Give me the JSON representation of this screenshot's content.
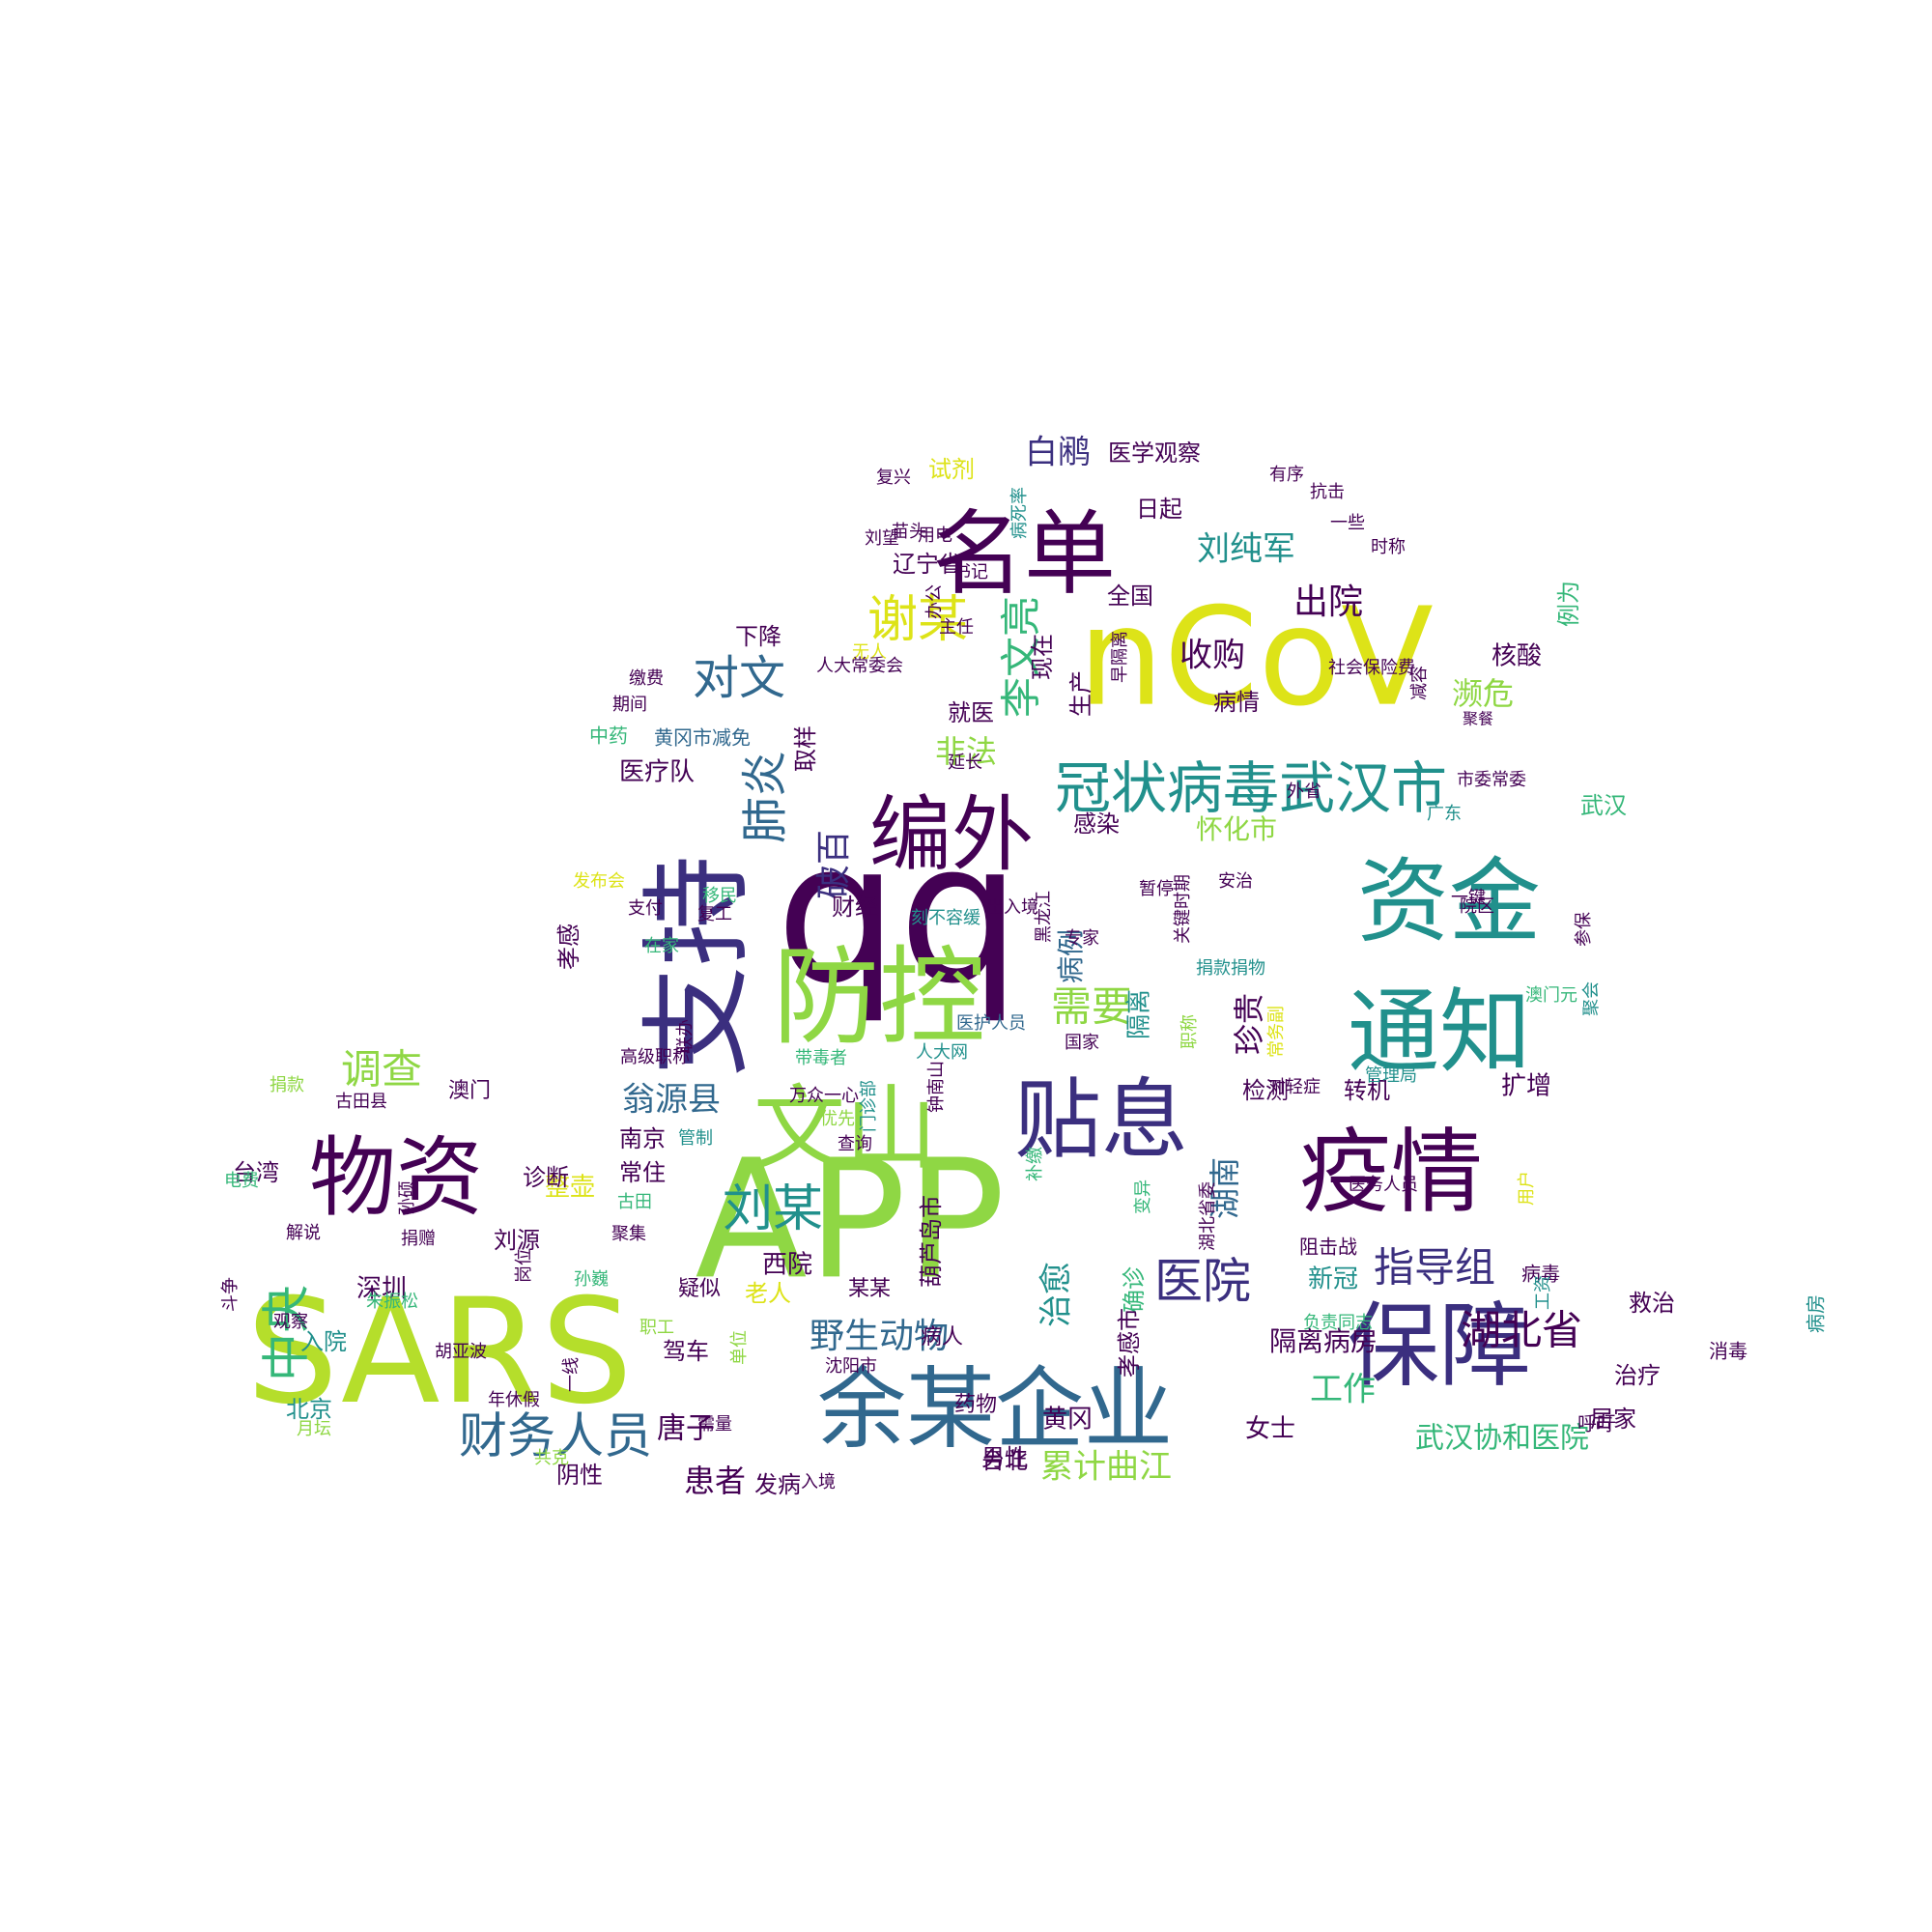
{
  "palette": {
    "dark_purple": "#440154",
    "indigo": "#3b2f7f",
    "blue": "#31688e",
    "teal": "#21908c",
    "green": "#35b779",
    "lime": "#8fd744",
    "yellow": "#dde318",
    "background": "#ffffff"
  },
  "words": [
    {
      "text": "qq",
      "weight": 100,
      "color": "#440154"
    },
    {
      "text": "APP",
      "weight": 97,
      "color": "#8fd744"
    },
    {
      "text": "SARS",
      "weight": 95,
      "color": "#b5de2b"
    },
    {
      "text": "nCoV",
      "weight": 92,
      "color": "#dde318"
    },
    {
      "text": "支持",
      "weight": 88,
      "color": "#3b2f7f"
    },
    {
      "text": "防控",
      "weight": 87,
      "color": "#8fd744"
    },
    {
      "text": "资金",
      "weight": 85,
      "color": "#21908c"
    },
    {
      "text": "通知",
      "weight": 84,
      "color": "#21908c"
    },
    {
      "text": "名单",
      "weight": 82,
      "color": "#440154"
    },
    {
      "text": "疫情",
      "weight": 82,
      "color": "#440154"
    },
    {
      "text": "保障",
      "weight": 80,
      "color": "#3b2f7f"
    },
    {
      "text": "余某企业",
      "weight": 79,
      "color": "#31688e"
    },
    {
      "text": "文山",
      "weight": 78,
      "color": "#8fd744"
    },
    {
      "text": "贴息",
      "weight": 77,
      "color": "#3b2f7f"
    },
    {
      "text": "物资",
      "weight": 76,
      "color": "#440154"
    },
    {
      "text": "编外",
      "weight": 74,
      "color": "#440154"
    },
    {
      "text": "冠状病毒武汉市",
      "weight": 58,
      "color": "#21908c"
    },
    {
      "text": "谢某",
      "weight": 55,
      "color": "#dde318"
    },
    {
      "text": "刘某",
      "weight": 54,
      "color": "#21908c"
    },
    {
      "text": "财务人员",
      "weight": 52,
      "color": "#31688e"
    },
    {
      "text": "中央",
      "weight": 52,
      "color": "#35b779"
    },
    {
      "text": "湖北省",
      "weight": 50,
      "color": "#440154"
    },
    {
      "text": "医院",
      "weight": 50,
      "color": "#3b2f7f"
    },
    {
      "text": "对文",
      "weight": 48,
      "color": "#31688e"
    },
    {
      "text": "肺炎",
      "weight": 47,
      "color": "#31688e"
    },
    {
      "text": "李文亮",
      "weight": 46,
      "color": "#35b779"
    },
    {
      "text": "调查",
      "weight": 44,
      "color": "#8fd744"
    },
    {
      "text": "需要",
      "weight": 44,
      "color": "#8fd744"
    },
    {
      "text": "指导组",
      "weight": 44,
      "color": "#3b2f7f"
    },
    {
      "text": "野生动物",
      "weight": 42,
      "color": "#31688e"
    },
    {
      "text": "破百",
      "weight": 42,
      "color": "#3b2f7f"
    },
    {
      "text": "出院",
      "weight": 40,
      "color": "#440154"
    },
    {
      "text": "刘纯军",
      "weight": 39,
      "color": "#21908c"
    },
    {
      "text": "白鹇",
      "weight": 39,
      "color": "#3b2f7f"
    },
    {
      "text": "收购",
      "weight": 39,
      "color": "#440154"
    },
    {
      "text": "翁源县",
      "weight": 38,
      "color": "#31688e"
    },
    {
      "text": "治愈",
      "weight": 38,
      "color": "#21908c"
    },
    {
      "text": "湖南",
      "weight": 38,
      "color": "#31688e"
    },
    {
      "text": "工作",
      "weight": 38,
      "color": "#35b779"
    },
    {
      "text": "累计曲江",
      "weight": 37,
      "color": "#8fd744"
    },
    {
      "text": "珍贵",
      "weight": 37,
      "color": "#440154"
    },
    {
      "text": "濒危",
      "weight": 36,
      "color": "#8fd744"
    },
    {
      "text": "非法",
      "weight": 36,
      "color": "#8fd744"
    },
    {
      "text": "患者",
      "weight": 35,
      "color": "#440154"
    },
    {
      "text": "武汉协和医院",
      "weight": 34,
      "color": "#35b779"
    },
    {
      "text": "怀化市",
      "weight": 32,
      "color": "#8fd744"
    },
    {
      "text": "隔离病房",
      "weight": 32,
      "color": "#440154"
    },
    {
      "text": "唐子",
      "weight": 32,
      "color": "#440154"
    },
    {
      "text": "病例",
      "weight": 32,
      "color": "#31688e"
    },
    {
      "text": "医疗队",
      "weight": 31,
      "color": "#440154"
    },
    {
      "text": "整壶",
      "weight": 31,
      "color": "#dde318"
    },
    {
      "text": "西院",
      "weight": 30,
      "color": "#440154"
    },
    {
      "text": "深圳",
      "weight": 30,
      "color": "#440154"
    },
    {
      "text": "女士",
      "weight": 30,
      "color": "#440154"
    },
    {
      "text": "黄冈",
      "weight": 30,
      "color": "#440154"
    },
    {
      "text": "隔离",
      "weight": 30,
      "color": "#21908c"
    },
    {
      "text": "新冠",
      "weight": 30,
      "color": "#21908c"
    },
    {
      "text": "扩增",
      "weight": 30,
      "color": "#440154"
    },
    {
      "text": "核酸",
      "weight": 30,
      "color": "#440154"
    },
    {
      "text": "常住",
      "weight": 29,
      "color": "#440154"
    },
    {
      "text": "南京",
      "weight": 29,
      "color": "#440154"
    },
    {
      "text": "就医",
      "weight": 29,
      "color": "#440154"
    },
    {
      "text": "感染",
      "weight": 29,
      "color": "#440154"
    },
    {
      "text": "检测",
      "weight": 29,
      "color": "#440154"
    },
    {
      "text": "转机",
      "weight": 29,
      "color": "#440154"
    },
    {
      "text": "治疗",
      "weight": 29,
      "color": "#440154"
    },
    {
      "text": "台北",
      "weight": 29,
      "color": "#440154"
    },
    {
      "text": "男性",
      "weight": 29,
      "color": "#440154"
    },
    {
      "text": "发病",
      "weight": 29,
      "color": "#440154"
    },
    {
      "text": "阴性",
      "weight": 29,
      "color": "#440154"
    },
    {
      "text": "刘源",
      "weight": 29,
      "color": "#440154"
    },
    {
      "text": "诊断",
      "weight": 29,
      "color": "#440154"
    },
    {
      "text": "北京",
      "weight": 28,
      "color": "#21908c"
    },
    {
      "text": "老人",
      "weight": 28,
      "color": "#dde318"
    },
    {
      "text": "驾车",
      "weight": 28,
      "color": "#440154"
    },
    {
      "text": "台湾",
      "weight": 28,
      "color": "#440154"
    },
    {
      "text": "入院",
      "weight": 28,
      "color": "#21908c"
    },
    {
      "text": "确诊",
      "weight": 28,
      "color": "#35b779"
    },
    {
      "text": "孝感市",
      "weight": 28,
      "color": "#440154"
    },
    {
      "text": "葫芦岛市",
      "weight": 28,
      "color": "#440154"
    },
    {
      "text": "取样",
      "weight": 26,
      "color": "#440154"
    },
    {
      "text": "例为",
      "weight": 26,
      "color": "#35b779"
    },
    {
      "text": "武汉",
      "weight": 26,
      "color": "#35b779"
    },
    {
      "text": "医学观察",
      "weight": 26,
      "color": "#440154"
    },
    {
      "text": "试剂",
      "weight": 26,
      "color": "#dde318"
    },
    {
      "text": "日起",
      "weight": 26,
      "color": "#440154"
    },
    {
      "text": "辽宁省",
      "weight": 26,
      "color": "#440154"
    },
    {
      "text": "下降",
      "weight": 24,
      "color": "#440154"
    },
    {
      "text": "财经",
      "weight": 24,
      "color": "#440154"
    },
    {
      "text": "孝感",
      "weight": 24,
      "color": "#440154"
    },
    {
      "text": "救治",
      "weight": 24,
      "color": "#440154"
    },
    {
      "text": "居家",
      "weight": 24,
      "color": "#440154"
    },
    {
      "text": "病情",
      "weight": 24,
      "color": "#440154"
    },
    {
      "text": "生产",
      "weight": 24,
      "color": "#440154"
    },
    {
      "text": "现在",
      "weight": 24,
      "color": "#440154"
    },
    {
      "text": "全国",
      "weight": 24,
      "color": "#440154"
    },
    {
      "text": "药物",
      "weight": 22,
      "color": "#440154"
    },
    {
      "text": "病人",
      "weight": 22,
      "color": "#440154"
    },
    {
      "text": "某某",
      "weight": 22,
      "color": "#440154"
    },
    {
      "text": "疑似",
      "weight": 22,
      "color": "#440154"
    },
    {
      "text": "澳门",
      "weight": 22,
      "color": "#440154"
    },
    {
      "text": "中药",
      "weight": 20,
      "color": "#35b779"
    },
    {
      "text": "黄冈市减免",
      "weight": 20,
      "color": "#31688e"
    },
    {
      "text": "阻击战",
      "weight": 20,
      "color": "#440154"
    },
    {
      "text": "病毒",
      "weight": 20,
      "color": "#440154"
    },
    {
      "text": "消毒",
      "weight": 20,
      "color": "#440154"
    },
    {
      "text": "呼吁",
      "weight": 20,
      "color": "#440154"
    },
    {
      "text": "病房",
      "weight": 20,
      "color": "#21908c"
    },
    {
      "text": "入境",
      "weight": 20,
      "color": "#440154"
    },
    {
      "text": "共克",
      "weight": 18,
      "color": "#8fd744"
    },
    {
      "text": "月坛",
      "weight": 18,
      "color": "#8fd744"
    },
    {
      "text": "胡亚波",
      "weight": 18,
      "color": "#440154"
    },
    {
      "text": "观察",
      "weight": 18,
      "color": "#440154"
    },
    {
      "text": "斗争",
      "weight": 18,
      "color": "#440154"
    },
    {
      "text": "电费",
      "weight": 18,
      "color": "#35b779"
    },
    {
      "text": "解说",
      "weight": 18,
      "color": "#440154"
    },
    {
      "text": "孙硕",
      "weight": 18,
      "color": "#440154"
    },
    {
      "text": "捐赠",
      "weight": 18,
      "color": "#440154"
    },
    {
      "text": "捐款",
      "weight": 18,
      "color": "#8fd744"
    },
    {
      "text": "古田县",
      "weight": 18,
      "color": "#440154"
    },
    {
      "text": "管制",
      "weight": 18,
      "color": "#21908c"
    },
    {
      "text": "古田",
      "weight": 18,
      "color": "#35b779"
    },
    {
      "text": "聚集",
      "weight": 18,
      "color": "#440154"
    },
    {
      "text": "孙巍",
      "weight": 18,
      "color": "#35b779"
    },
    {
      "text": "岗位",
      "weight": 18,
      "color": "#440154"
    },
    {
      "text": "朱振松",
      "weight": 18,
      "color": "#35b779"
    },
    {
      "text": "职工",
      "weight": 18,
      "color": "#8fd744"
    },
    {
      "text": "单位",
      "weight": 18,
      "color": "#8fd744"
    },
    {
      "text": "沈阳市",
      "weight": 18,
      "color": "#440154"
    },
    {
      "text": "需量",
      "weight": 18,
      "color": "#440154"
    },
    {
      "text": "年休假",
      "weight": 18,
      "color": "#440154"
    },
    {
      "text": "一线",
      "weight": 18,
      "color": "#440154"
    },
    {
      "text": "带毒者",
      "weight": 18,
      "color": "#35b779"
    },
    {
      "text": "高级职称",
      "weight": 18,
      "color": "#440154"
    },
    {
      "text": "联办",
      "weight": 18,
      "color": "#440154"
    },
    {
      "text": "万众一心",
      "weight": 18,
      "color": "#440154"
    },
    {
      "text": "优先",
      "weight": 18,
      "color": "#8fd744"
    },
    {
      "text": "查询",
      "weight": 18,
      "color": "#440154"
    },
    {
      "text": "门诊部",
      "weight": 18,
      "color": "#21908c"
    },
    {
      "text": "钟南山",
      "weight": 18,
      "color": "#440154"
    },
    {
      "text": "人大网",
      "weight": 18,
      "color": "#21908c"
    },
    {
      "text": "医护人员",
      "weight": 18,
      "color": "#31688e"
    },
    {
      "text": "国家",
      "weight": 18,
      "color": "#440154"
    },
    {
      "text": "补缴",
      "weight": 18,
      "color": "#35b779"
    },
    {
      "text": "变异",
      "weight": 18,
      "color": "#35b779"
    },
    {
      "text": "湖北省委",
      "weight": 18,
      "color": "#440154"
    },
    {
      "text": "职称",
      "weight": 18,
      "color": "#8fd744"
    },
    {
      "text": "常务副",
      "weight": 18,
      "color": "#dde318"
    },
    {
      "text": "对轻症",
      "weight": 18,
      "color": "#440154"
    },
    {
      "text": "管理局",
      "weight": 18,
      "color": "#21908c"
    },
    {
      "text": "用户",
      "weight": 18,
      "color": "#dde318"
    },
    {
      "text": "医务人员",
      "weight": 18,
      "color": "#440154"
    },
    {
      "text": "负责同志",
      "weight": 18,
      "color": "#35b779"
    },
    {
      "text": "工资",
      "weight": 18,
      "color": "#21908c"
    },
    {
      "text": "捐款捐物",
      "weight": 18,
      "color": "#21908c"
    },
    {
      "text": "专家",
      "weight": 18,
      "color": "#440154"
    },
    {
      "text": "关键时期",
      "weight": 18,
      "color": "#440154"
    },
    {
      "text": "黑龙江",
      "weight": 18,
      "color": "#440154"
    },
    {
      "text": "出入境",
      "weight": 18,
      "color": "#440154"
    },
    {
      "text": "刻不容缓",
      "weight": 18,
      "color": "#21908c"
    },
    {
      "text": "在家",
      "weight": 18,
      "color": "#35b779"
    },
    {
      "text": "支付",
      "weight": 18,
      "color": "#440154"
    },
    {
      "text": "发布会",
      "weight": 18,
      "color": "#dde318"
    },
    {
      "text": "移民",
      "weight": 18,
      "color": "#35b779"
    },
    {
      "text": "复工",
      "weight": 18,
      "color": "#440154"
    },
    {
      "text": "暂停",
      "weight": 18,
      "color": "#440154"
    },
    {
      "text": "安治",
      "weight": 18,
      "color": "#440154"
    },
    {
      "text": "一键",
      "weight": 18,
      "color": "#440154"
    },
    {
      "text": "院区",
      "weight": 18,
      "color": "#440154"
    },
    {
      "text": "参保",
      "weight": 18,
      "color": "#440154"
    },
    {
      "text": "聚会",
      "weight": 18,
      "color": "#21908c"
    },
    {
      "text": "澳门元",
      "weight": 18,
      "color": "#35b779"
    },
    {
      "text": "市委常委",
      "weight": 18,
      "color": "#440154"
    },
    {
      "text": "广东",
      "weight": 18,
      "color": "#21908c"
    },
    {
      "text": "外省",
      "weight": 18,
      "color": "#440154"
    },
    {
      "text": "延长",
      "weight": 18,
      "color": "#440154"
    },
    {
      "text": "聚餐",
      "weight": 18,
      "color": "#440154"
    },
    {
      "text": "减容",
      "weight": 18,
      "color": "#440154"
    },
    {
      "text": "社会保险费",
      "weight": 16,
      "color": "#440154"
    },
    {
      "text": "早隔离",
      "weight": 18,
      "color": "#440154"
    },
    {
      "text": "无人",
      "weight": 18,
      "color": "#dde318"
    },
    {
      "text": "人大常委会",
      "weight": 18,
      "color": "#440154"
    },
    {
      "text": "主任",
      "weight": 18,
      "color": "#440154"
    },
    {
      "text": "办公",
      "weight": 18,
      "color": "#440154"
    },
    {
      "text": "书记",
      "weight": 18,
      "color": "#440154"
    },
    {
      "text": "刘望",
      "weight": 18,
      "color": "#440154"
    },
    {
      "text": "用电",
      "weight": 18,
      "color": "#440154"
    },
    {
      "text": "病死率",
      "weight": 18,
      "color": "#21908c"
    },
    {
      "text": "苗头",
      "weight": 18,
      "color": "#440154"
    },
    {
      "text": "复兴",
      "weight": 18,
      "color": "#440154"
    },
    {
      "text": "有序",
      "weight": 18,
      "color": "#440154"
    },
    {
      "text": "抗击",
      "weight": 18,
      "color": "#440154"
    },
    {
      "text": "一些",
      "weight": 18,
      "color": "#440154"
    },
    {
      "text": "时称",
      "weight": 18,
      "color": "#440154"
    },
    {
      "text": "缴费",
      "weight": 18,
      "color": "#440154"
    },
    {
      "text": "期间",
      "weight": 18,
      "color": "#440154"
    }
  ]
}
